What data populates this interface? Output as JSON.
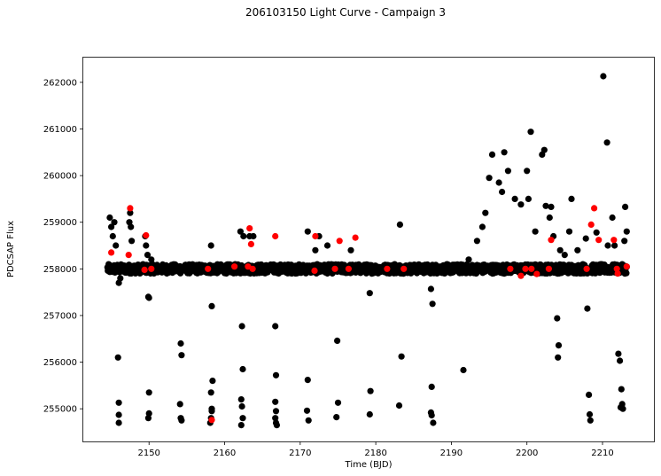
{
  "chart_data": {
    "type": "scatter",
    "title": "206103150 Light Curve - Campaign 3",
    "xlabel": "Time (BJD)",
    "ylabel": "PDCSAP Flux",
    "xlim": [
      2141.3,
      2216.8
    ],
    "ylim": [
      254300,
      262530
    ],
    "xticks": [
      2150,
      2160,
      2170,
      2180,
      2190,
      2200,
      2210
    ],
    "yticks": [
      255000,
      256000,
      257000,
      258000,
      259000,
      260000,
      261000,
      262000
    ],
    "grid": false,
    "series": [
      {
        "color": "#000000",
        "baseline": {
          "x_start": 2144.5,
          "x_end": 2213.2,
          "y": 258000,
          "spread": 100
        },
        "x": [
          2144.8,
          2145.0,
          2145.2,
          2145.4,
          2145.6,
          2146.0,
          2146.2,
          2147.4,
          2147.5,
          2147.6,
          2147.7,
          2149.5,
          2149.6,
          2149.8,
          2149.9,
          2150.0,
          2150.0,
          2150.0,
          2149.9,
          2150.3,
          2145.9,
          2146.0,
          2146.0,
          2146.0,
          2154.2,
          2154.3,
          2154.1,
          2154.2,
          2154.3,
          2158.2,
          2158.3,
          2158.4,
          2158.2,
          2158.3,
          2158.3,
          2158.2,
          2158.1,
          2162.1,
          2162.3,
          2162.4,
          2162.2,
          2162.3,
          2162.4,
          2162.2,
          2166.7,
          2166.8,
          2166.7,
          2166.8,
          2166.7,
          2166.8,
          2166.9,
          2171.0,
          2170.9,
          2171.1,
          2171.0,
          2174.9,
          2175.0,
          2174.8,
          2179.2,
          2179.3,
          2179.2,
          2183.2,
          2183.4,
          2183.1,
          2187.3,
          2187.5,
          2187.4,
          2187.3,
          2187.4,
          2187.6,
          2191.6,
          2195.0,
          2195.4,
          2196.3,
          2196.7,
          2197.0,
          2197.5,
          2198.4,
          2199.2,
          2200.0,
          2200.2,
          2200.5,
          2201.1,
          2202.0,
          2202.3,
          2202.5,
          2203.0,
          2203.2,
          2203.5,
          2204.0,
          2204.1,
          2204.2,
          2204.4,
          2205.6,
          2205.9,
          2206.7,
          2207.4,
          2208.0,
          2208.2,
          2208.3,
          2208.4,
          2209.2,
          2210.1,
          2210.6,
          2210.7,
          2211.3,
          2211.6,
          2212.1,
          2212.3,
          2212.5,
          2212.6,
          2212.4,
          2212.7,
          2213.2,
          2213.0,
          2212.9,
          2162.5,
          2163.3,
          2172.5,
          2173.6,
          2176.7,
          2182.5,
          2193.4,
          2194.1,
          2194.5,
          2196.1,
          2192.3,
          2172.0,
          2163.8,
          2207.8,
          2205.0
        ],
        "y": [
          259100,
          258900,
          258700,
          259000,
          258500,
          257700,
          257800,
          259000,
          259200,
          258900,
          258600,
          258700,
          258500,
          258300,
          257400,
          257380,
          255350,
          254900,
          254800,
          258200,
          256100,
          255130,
          254870,
          254700,
          256400,
          256150,
          255100,
          254800,
          254750,
          258500,
          257200,
          255600,
          255350,
          255000,
          254950,
          254800,
          254700,
          258800,
          256770,
          255850,
          255200,
          255050,
          254800,
          254650,
          256770,
          255720,
          255150,
          254950,
          254800,
          254700,
          254650,
          255620,
          254960,
          254750,
          258800,
          256460,
          255130,
          254820,
          257480,
          255380,
          254880,
          258950,
          256120,
          255070,
          257570,
          257250,
          255470,
          254920,
          254860,
          254700,
          255830,
          259950,
          260450,
          259850,
          259650,
          260500,
          260100,
          259500,
          259380,
          260100,
          259500,
          260940,
          258800,
          260450,
          260550,
          259350,
          259100,
          259330,
          258700,
          256940,
          256100,
          256360,
          258400,
          258800,
          259500,
          258400,
          258100,
          257150,
          255300,
          254880,
          254750,
          258780,
          262130,
          260710,
          258500,
          259100,
          258500,
          256180,
          256030,
          255420,
          255100,
          255030,
          255000,
          258800,
          259330,
          258600,
          258700,
          258700,
          258700,
          258500,
          258400,
          258100,
          258600,
          258900,
          259200,
          258000,
          258200,
          258400,
          258700,
          258650,
          258300
        ]
      },
      {
        "color": "#ff0000",
        "x": [
          2145.0,
          2147.3,
          2147.5,
          2149.4,
          2149.6,
          2150.3,
          2157.8,
          2158.3,
          2161.3,
          2163.1,
          2163.3,
          2163.5,
          2163.7,
          2166.7,
          2172.0,
          2171.9,
          2174.6,
          2175.2,
          2176.4,
          2177.3,
          2181.5,
          2183.7,
          2197.8,
          2199.2,
          2199.8,
          2200.6,
          2201.3,
          2202.9,
          2203.2,
          2207.9,
          2208.5,
          2208.9,
          2209.5,
          2211.5,
          2211.9,
          2212.0,
          2213.2
        ],
        "y": [
          258350,
          258300,
          259300,
          257980,
          258720,
          258000,
          258000,
          254760,
          258050,
          258050,
          258870,
          258530,
          258000,
          258700,
          258700,
          257960,
          258000,
          258600,
          258000,
          258670,
          258000,
          258000,
          258000,
          257850,
          258000,
          258000,
          257890,
          258000,
          258620,
          258000,
          258950,
          259300,
          258620,
          258620,
          258000,
          257900,
          258050
        ]
      }
    ]
  }
}
